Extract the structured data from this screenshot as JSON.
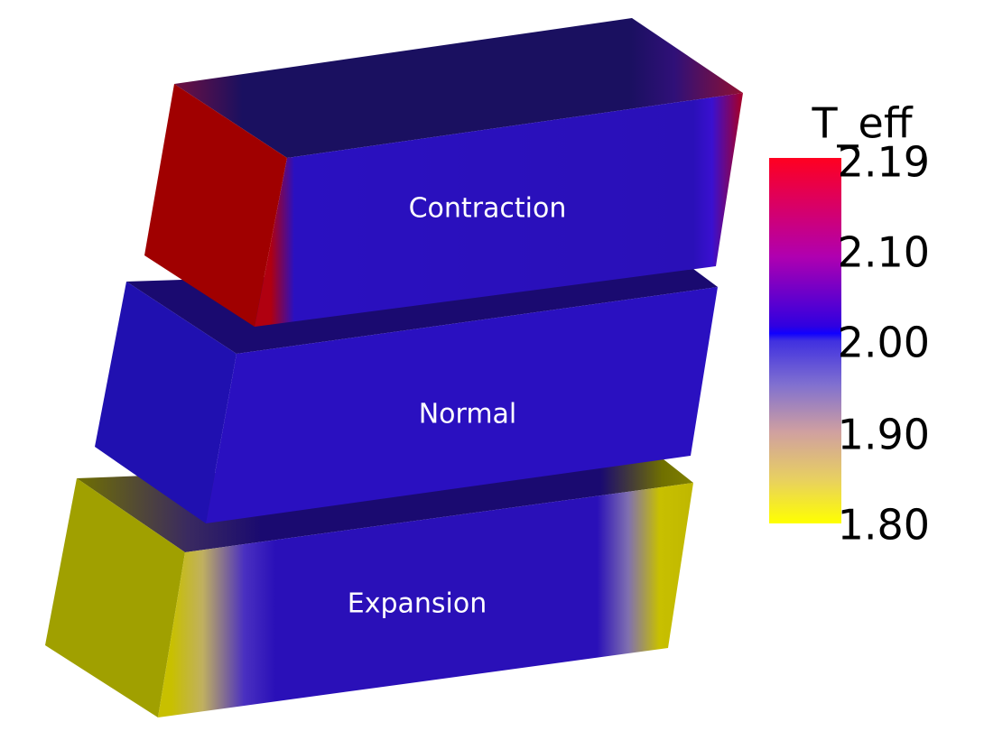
{
  "boxes": [
    {
      "label": "Contraction"
    },
    {
      "label": "Normal"
    },
    {
      "label": "Expansion"
    }
  ],
  "colorbar": {
    "title": "T_eff",
    "ticks": [
      "2.19",
      "2.10",
      "2.00",
      "1.90",
      "1.80"
    ]
  }
}
